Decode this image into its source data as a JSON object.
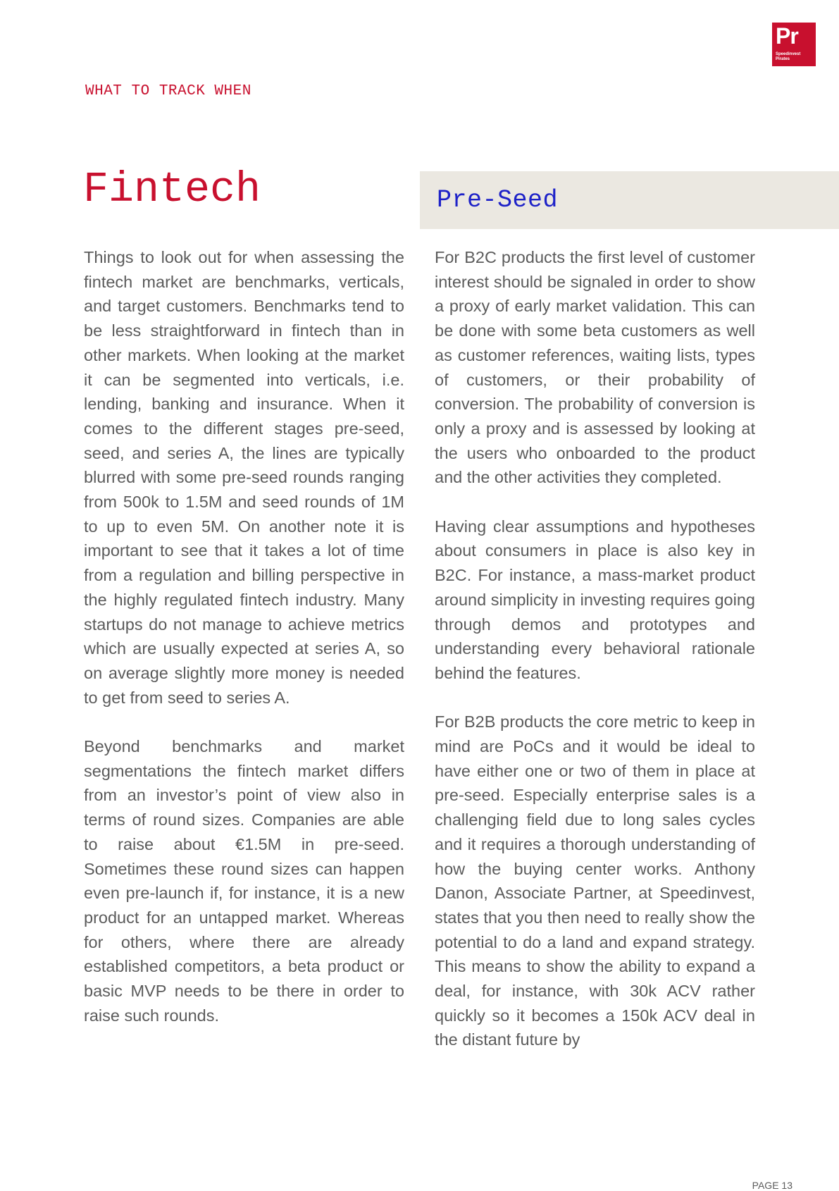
{
  "logo": {
    "mark": "Pr",
    "line1": "Speedinvest",
    "line2": "Pirates"
  },
  "header": {
    "kicker": "WHAT TO TRACK WHEN"
  },
  "title": "Fintech",
  "stage": "Pre-Seed",
  "left_column": [
    "Things to look out for when assessing the fintech market are benchmarks, verticals, and target customers. Benchmarks tend to be less straightforward in fintech than in other markets. When looking at the market it can be segmented into verticals, i.e. lending, banking and insurance. When it comes to the different stages pre-seed, seed, and series A, the lines are typically blurred with some pre-seed rounds ranging from 500k to 1.5M and seed rounds of 1M to up to even 5M. On another note it is important to see that it takes a lot of time from a regulation and billing perspective in the highly regulated fintech industry. Many startups do not manage to achieve metrics which are usually expected at series A, so on average slightly more money is needed to get from seed to series A.",
    "Beyond benchmarks and market segmentations the fintech market differs from an investor’s point of view also in terms of round sizes. Companies are able to raise about €1.5M in pre-seed. Sometimes these round sizes can happen even pre-launch if, for instance, it is a new product for an untapped market. Whereas for others, where there are already established competitors, a beta product or basic MVP needs to be there in order to raise such rounds."
  ],
  "right_column": [
    "For B2C products the first level of customer interest should be signaled in order to show a proxy of early market validation. This can be done with some beta customers as well as customer references, waiting lists, types of customers, or their probability of conversion. The probability of conversion is only a proxy and is assessed by looking at the users who onboarded to the product and the other activities they completed.",
    "Having clear assumptions and hypotheses about consumers in place is also key in B2C. For instance, a mass-market product around simplicity in investing requires going through demos and prototypes and understanding every behavioral rationale behind the features.",
    "For B2B products the core metric to keep in mind are PoCs and it would be ideal to have either one or two of them in place at pre-seed. Especially enterprise sales is a challenging field due to long sales cycles and it requires a thorough understanding of how the buying center works. Anthony Danon, Associate Partner, at Speedinvest, states that you then need to really show the potential to do a land and expand strategy. This means  to show the ability to expand a deal, for instance, with 30k ACV rather quickly so it becomes a 150k ACV deal in the distant future by"
  ],
  "footer": {
    "page": "PAGE 13"
  }
}
